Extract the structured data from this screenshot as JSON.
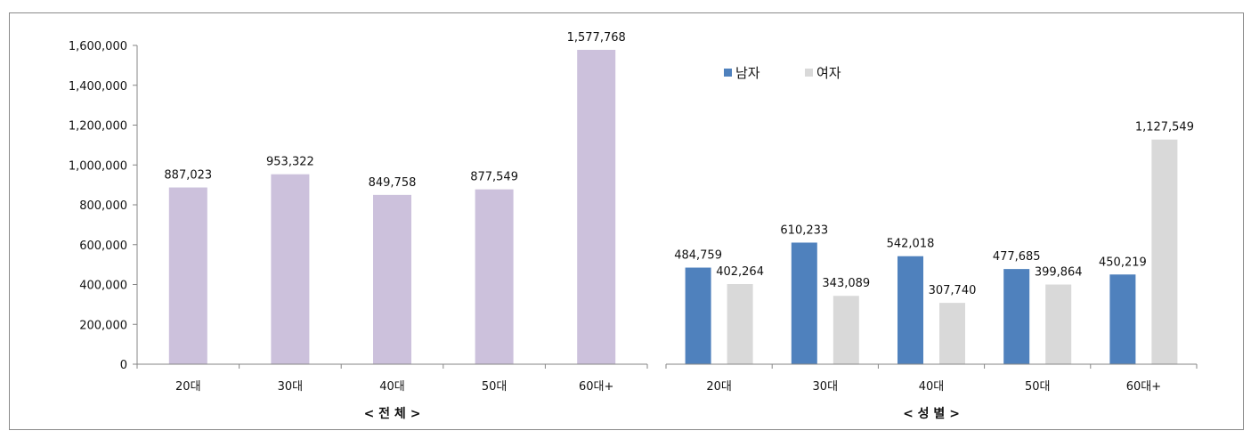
{
  "chart_data": [
    {
      "type": "bar",
      "title": "",
      "xlabel": "< 전 체 >",
      "ylabel": "",
      "categories": [
        "20대",
        "30대",
        "40대",
        "50대",
        "60대+"
      ],
      "values": [
        887023,
        953322,
        849758,
        877549,
        1577768
      ],
      "value_labels": [
        "887,023",
        "953,322",
        "849,758",
        "877,549",
        "1,577,768"
      ],
      "ylim": [
        0,
        1600000
      ],
      "yticks": [
        0,
        200000,
        400000,
        600000,
        800000,
        1000000,
        1200000,
        1400000,
        1600000
      ],
      "ytick_labels": [
        "0",
        "200,000",
        "400,000",
        "600,000",
        "800,000",
        "1,000,000",
        "1,200,000",
        "1,400,000",
        "1,600,000"
      ],
      "color": "#ccc1dc"
    },
    {
      "type": "bar",
      "title": "",
      "xlabel": "< 성 별 >",
      "ylabel": "",
      "categories": [
        "20대",
        "30대",
        "40대",
        "50대",
        "60대+"
      ],
      "ylim": [
        0,
        1600000
      ],
      "legend_position": "top-left",
      "series": [
        {
          "name": "남자",
          "color": "#4f81bd",
          "values": [
            484759,
            610233,
            542018,
            477685,
            450219
          ],
          "value_labels": [
            "484,759",
            "610,233",
            "542,018",
            "477,685",
            "450,219"
          ]
        },
        {
          "name": "여자",
          "color": "#d9d9d9",
          "values": [
            402264,
            343089,
            307740,
            399864,
            1127549
          ],
          "value_labels": [
            "402,264",
            "343,089",
            "307,740",
            "399,864",
            "1,127,549"
          ]
        }
      ]
    }
  ]
}
